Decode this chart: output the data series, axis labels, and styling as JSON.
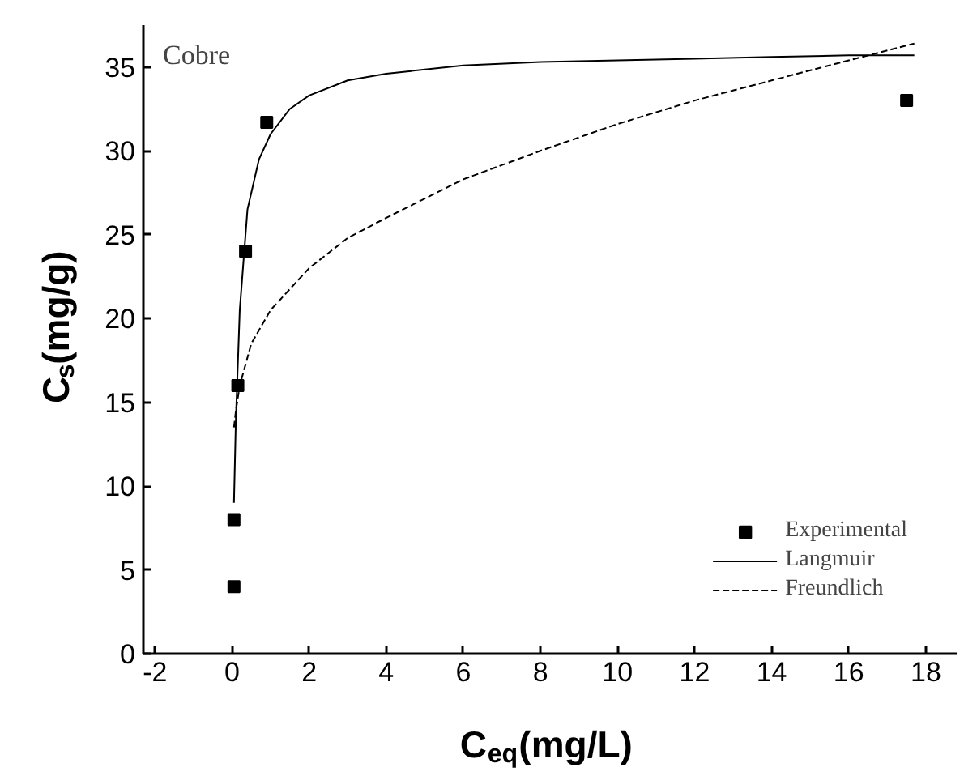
{
  "chart_data": {
    "type": "scatter",
    "xlabel": "C$_{eq}$(mg/L)",
    "ylabel": "C$_{s}$(mg/g)",
    "annotations": [
      "Cobre"
    ],
    "xlim": [
      -2.3,
      18.8
    ],
    "ylim": [
      0,
      37.5
    ],
    "xticks": [
      -2,
      0,
      2,
      4,
      6,
      8,
      10,
      12,
      14,
      16,
      18
    ],
    "yticks": [
      0,
      5,
      10,
      15,
      20,
      25,
      30,
      35
    ],
    "grid": false,
    "legend": "bottom right",
    "series": [
      {
        "name": "Experimental",
        "marker": "square",
        "color": "#000000",
        "x": [
          0.05,
          0.05,
          0.15,
          0.35,
          0.9,
          17.5
        ],
        "values": [
          4,
          8,
          16,
          24,
          31.7,
          33
        ]
      },
      {
        "name": "Langmuir",
        "type": "line",
        "line_style": "solid",
        "color": "#000000",
        "x": [
          0.05,
          0.1,
          0.2,
          0.4,
          0.7,
          1,
          1.5,
          2,
          3,
          4,
          6,
          8,
          10,
          12,
          14,
          16,
          17.7
        ],
        "values": [
          9,
          14,
          20.5,
          26.5,
          29.5,
          31,
          32.5,
          33.3,
          34.2,
          34.6,
          35.1,
          35.3,
          35.4,
          35.5,
          35.6,
          35.7,
          35.7
        ]
      },
      {
        "name": "Freundlich",
        "type": "line",
        "line_style": "dashed",
        "color": "#000000",
        "x": [
          0.05,
          0.1,
          0.2,
          0.5,
          1,
          2,
          3,
          4,
          6,
          8,
          10,
          12,
          14,
          16,
          17.7
        ],
        "values": [
          13.5,
          14.5,
          16,
          18.5,
          20.5,
          23,
          24.8,
          26,
          28.3,
          30,
          31.6,
          33,
          34.2,
          35.4,
          36.4
        ]
      }
    ]
  }
}
